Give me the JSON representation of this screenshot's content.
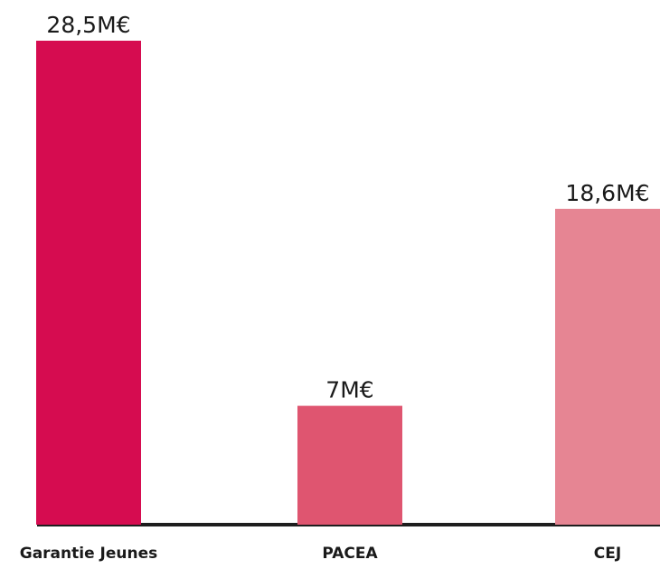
{
  "chart_data": {
    "type": "bar",
    "categories": [
      "Garantie Jeunes",
      "PACEA",
      "CEJ"
    ],
    "values": [
      28.5,
      7,
      18.6
    ],
    "value_labels": [
      "28,5M€",
      "7M€",
      "18,6M€"
    ],
    "unit": "M€",
    "colors": [
      "#d60c50",
      "#df5570",
      "#e68593"
    ],
    "baseline_color": "#1e1e1e",
    "title": "",
    "xlabel": "",
    "ylabel": "",
    "ylim": [
      0,
      28.5
    ],
    "grid": false,
    "legend": "none"
  }
}
